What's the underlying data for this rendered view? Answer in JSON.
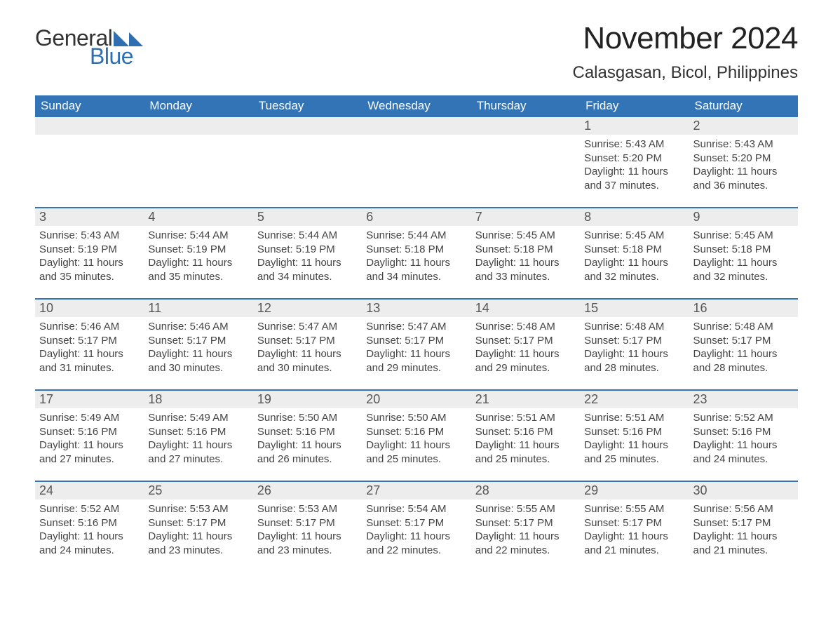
{
  "logo": {
    "general": "General",
    "blue": "Blue",
    "tri_color": "#2f6fb1"
  },
  "title": "November 2024",
  "location": "Calasgasan, Bicol, Philippines",
  "header_bg": "#3374b6",
  "header_fg": "#ffffff",
  "daynum_bg": "#ededed",
  "rule_color": "#3374b6",
  "weekdays": [
    "Sunday",
    "Monday",
    "Tuesday",
    "Wednesday",
    "Thursday",
    "Friday",
    "Saturday"
  ],
  "weeks": [
    [
      null,
      null,
      null,
      null,
      null,
      {
        "n": "1",
        "sunrise": "Sunrise: 5:43 AM",
        "sunset": "Sunset: 5:20 PM",
        "day1": "Daylight: 11 hours",
        "day2": "and 37 minutes."
      },
      {
        "n": "2",
        "sunrise": "Sunrise: 5:43 AM",
        "sunset": "Sunset: 5:20 PM",
        "day1": "Daylight: 11 hours",
        "day2": "and 36 minutes."
      }
    ],
    [
      {
        "n": "3",
        "sunrise": "Sunrise: 5:43 AM",
        "sunset": "Sunset: 5:19 PM",
        "day1": "Daylight: 11 hours",
        "day2": "and 35 minutes."
      },
      {
        "n": "4",
        "sunrise": "Sunrise: 5:44 AM",
        "sunset": "Sunset: 5:19 PM",
        "day1": "Daylight: 11 hours",
        "day2": "and 35 minutes."
      },
      {
        "n": "5",
        "sunrise": "Sunrise: 5:44 AM",
        "sunset": "Sunset: 5:19 PM",
        "day1": "Daylight: 11 hours",
        "day2": "and 34 minutes."
      },
      {
        "n": "6",
        "sunrise": "Sunrise: 5:44 AM",
        "sunset": "Sunset: 5:18 PM",
        "day1": "Daylight: 11 hours",
        "day2": "and 34 minutes."
      },
      {
        "n": "7",
        "sunrise": "Sunrise: 5:45 AM",
        "sunset": "Sunset: 5:18 PM",
        "day1": "Daylight: 11 hours",
        "day2": "and 33 minutes."
      },
      {
        "n": "8",
        "sunrise": "Sunrise: 5:45 AM",
        "sunset": "Sunset: 5:18 PM",
        "day1": "Daylight: 11 hours",
        "day2": "and 32 minutes."
      },
      {
        "n": "9",
        "sunrise": "Sunrise: 5:45 AM",
        "sunset": "Sunset: 5:18 PM",
        "day1": "Daylight: 11 hours",
        "day2": "and 32 minutes."
      }
    ],
    [
      {
        "n": "10",
        "sunrise": "Sunrise: 5:46 AM",
        "sunset": "Sunset: 5:17 PM",
        "day1": "Daylight: 11 hours",
        "day2": "and 31 minutes."
      },
      {
        "n": "11",
        "sunrise": "Sunrise: 5:46 AM",
        "sunset": "Sunset: 5:17 PM",
        "day1": "Daylight: 11 hours",
        "day2": "and 30 minutes."
      },
      {
        "n": "12",
        "sunrise": "Sunrise: 5:47 AM",
        "sunset": "Sunset: 5:17 PM",
        "day1": "Daylight: 11 hours",
        "day2": "and 30 minutes."
      },
      {
        "n": "13",
        "sunrise": "Sunrise: 5:47 AM",
        "sunset": "Sunset: 5:17 PM",
        "day1": "Daylight: 11 hours",
        "day2": "and 29 minutes."
      },
      {
        "n": "14",
        "sunrise": "Sunrise: 5:48 AM",
        "sunset": "Sunset: 5:17 PM",
        "day1": "Daylight: 11 hours",
        "day2": "and 29 minutes."
      },
      {
        "n": "15",
        "sunrise": "Sunrise: 5:48 AM",
        "sunset": "Sunset: 5:17 PM",
        "day1": "Daylight: 11 hours",
        "day2": "and 28 minutes."
      },
      {
        "n": "16",
        "sunrise": "Sunrise: 5:48 AM",
        "sunset": "Sunset: 5:17 PM",
        "day1": "Daylight: 11 hours",
        "day2": "and 28 minutes."
      }
    ],
    [
      {
        "n": "17",
        "sunrise": "Sunrise: 5:49 AM",
        "sunset": "Sunset: 5:16 PM",
        "day1": "Daylight: 11 hours",
        "day2": "and 27 minutes."
      },
      {
        "n": "18",
        "sunrise": "Sunrise: 5:49 AM",
        "sunset": "Sunset: 5:16 PM",
        "day1": "Daylight: 11 hours",
        "day2": "and 27 minutes."
      },
      {
        "n": "19",
        "sunrise": "Sunrise: 5:50 AM",
        "sunset": "Sunset: 5:16 PM",
        "day1": "Daylight: 11 hours",
        "day2": "and 26 minutes."
      },
      {
        "n": "20",
        "sunrise": "Sunrise: 5:50 AM",
        "sunset": "Sunset: 5:16 PM",
        "day1": "Daylight: 11 hours",
        "day2": "and 25 minutes."
      },
      {
        "n": "21",
        "sunrise": "Sunrise: 5:51 AM",
        "sunset": "Sunset: 5:16 PM",
        "day1": "Daylight: 11 hours",
        "day2": "and 25 minutes."
      },
      {
        "n": "22",
        "sunrise": "Sunrise: 5:51 AM",
        "sunset": "Sunset: 5:16 PM",
        "day1": "Daylight: 11 hours",
        "day2": "and 25 minutes."
      },
      {
        "n": "23",
        "sunrise": "Sunrise: 5:52 AM",
        "sunset": "Sunset: 5:16 PM",
        "day1": "Daylight: 11 hours",
        "day2": "and 24 minutes."
      }
    ],
    [
      {
        "n": "24",
        "sunrise": "Sunrise: 5:52 AM",
        "sunset": "Sunset: 5:16 PM",
        "day1": "Daylight: 11 hours",
        "day2": "and 24 minutes."
      },
      {
        "n": "25",
        "sunrise": "Sunrise: 5:53 AM",
        "sunset": "Sunset: 5:17 PM",
        "day1": "Daylight: 11 hours",
        "day2": "and 23 minutes."
      },
      {
        "n": "26",
        "sunrise": "Sunrise: 5:53 AM",
        "sunset": "Sunset: 5:17 PM",
        "day1": "Daylight: 11 hours",
        "day2": "and 23 minutes."
      },
      {
        "n": "27",
        "sunrise": "Sunrise: 5:54 AM",
        "sunset": "Sunset: 5:17 PM",
        "day1": "Daylight: 11 hours",
        "day2": "and 22 minutes."
      },
      {
        "n": "28",
        "sunrise": "Sunrise: 5:55 AM",
        "sunset": "Sunset: 5:17 PM",
        "day1": "Daylight: 11 hours",
        "day2": "and 22 minutes."
      },
      {
        "n": "29",
        "sunrise": "Sunrise: 5:55 AM",
        "sunset": "Sunset: 5:17 PM",
        "day1": "Daylight: 11 hours",
        "day2": "and 21 minutes."
      },
      {
        "n": "30",
        "sunrise": "Sunrise: 5:56 AM",
        "sunset": "Sunset: 5:17 PM",
        "day1": "Daylight: 11 hours",
        "day2": "and 21 minutes."
      }
    ]
  ]
}
